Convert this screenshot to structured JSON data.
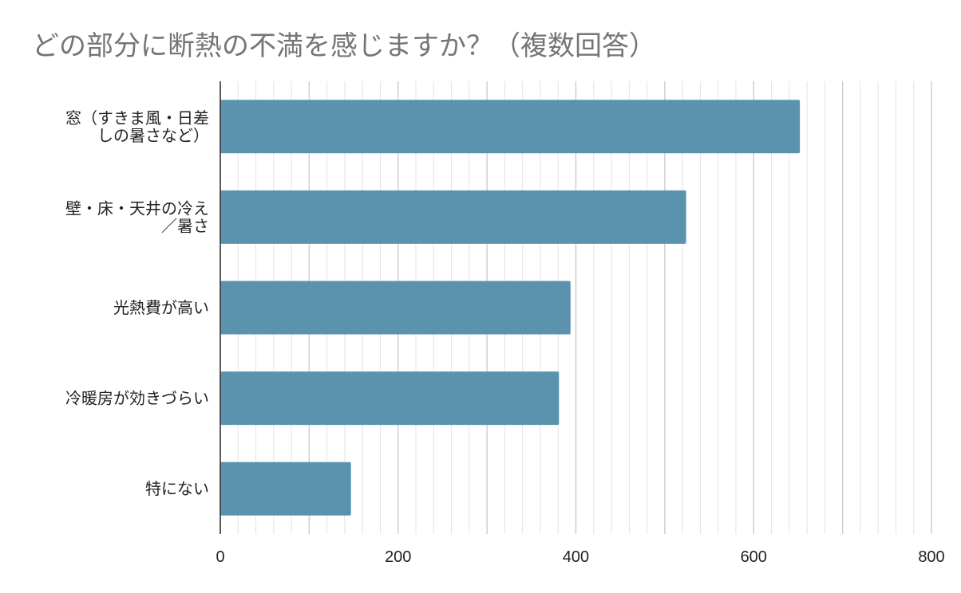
{
  "chart_data": {
    "type": "bar",
    "orientation": "horizontal",
    "title": "どの部分に断熱の不満を感じますか？（複数回答）",
    "categories": [
      [
        "窓（すきま風・日差",
        "しの暑さなど）"
      ],
      [
        "壁・床・天井の冷え",
        "／暑さ"
      ],
      [
        "光熱費が高い"
      ],
      [
        "冷暖房が効きづらい"
      ],
      [
        "特にない"
      ]
    ],
    "values": [
      652,
      524,
      394,
      381,
      147
    ],
    "xlim": [
      0,
      800
    ],
    "xticks": [
      "0",
      "200",
      "400",
      "600",
      "800"
    ],
    "grid": true,
    "legend": "none",
    "bar_color": "#5b93af"
  }
}
